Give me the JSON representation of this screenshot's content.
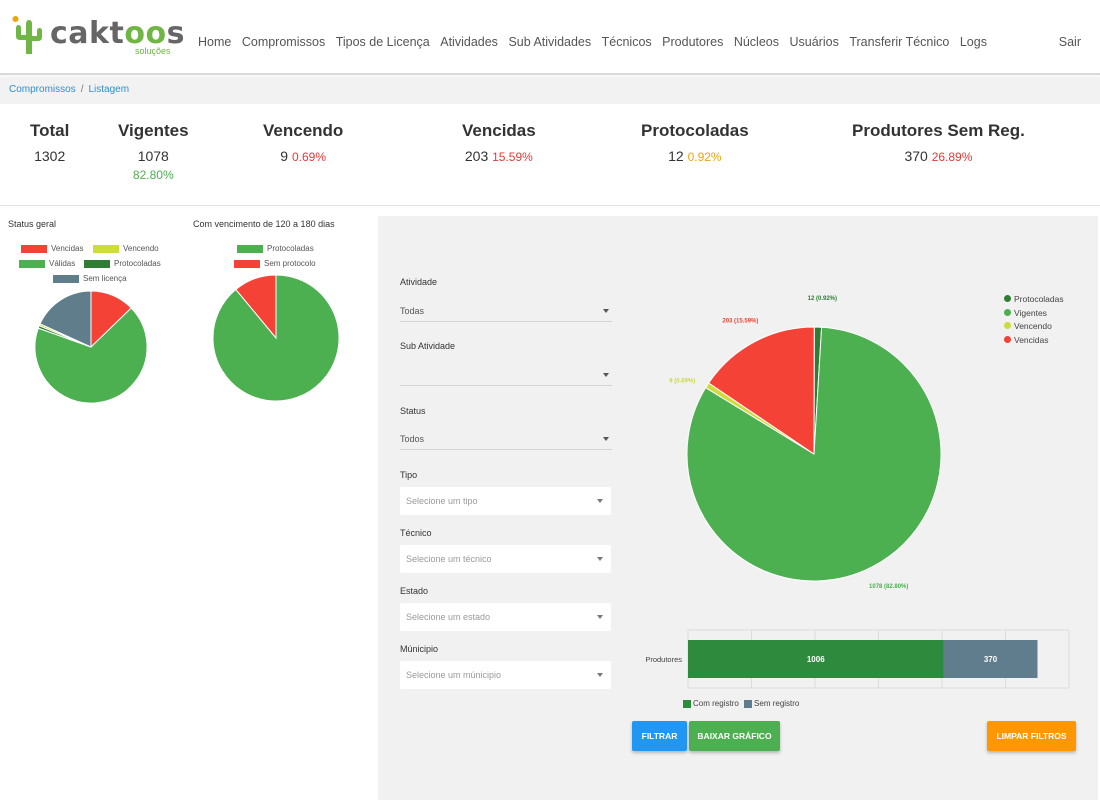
{
  "logo": {
    "brand_a": "cakt",
    "brand_b": "oo",
    "brand_c": "s",
    "tagline": "soluções"
  },
  "nav": {
    "items": [
      "Home",
      "Compromissos",
      "Tipos de Licença",
      "Atividades",
      "Sub Atividades",
      "Técnicos",
      "Produtores",
      "Núcleos",
      "Usuários",
      "Transferir Técnico",
      "Logs"
    ],
    "logout": "Sair"
  },
  "breadcrumb": {
    "root": "Compromissos",
    "separator": "/",
    "current": "Listagem"
  },
  "stats": {
    "total": {
      "title": "Total",
      "value": "1302"
    },
    "vigentes": {
      "title": "Vigentes",
      "value": "1078",
      "pct": "82.80%"
    },
    "vencendo": {
      "title": "Vencendo",
      "value": "9",
      "pct": "0.69%"
    },
    "vencidas": {
      "title": "Vencidas",
      "value": "203",
      "pct": "15.59%"
    },
    "protocoladas": {
      "title": "Protocoladas",
      "value": "12",
      "pct": "0.92%"
    },
    "produtores": {
      "title": "Produtores Sem Reg.",
      "value": "370",
      "pct": "26.89%"
    }
  },
  "chart_data": [
    {
      "type": "pie",
      "title": "Status geral",
      "categories": [
        "Vencidas",
        "Vencendo",
        "Válidas",
        "Protocoladas",
        "Sem licença"
      ],
      "values": [
        203,
        9,
        1078,
        12,
        290
      ],
      "colors": [
        "#f44336",
        "#cddc39",
        "#4caf50",
        "#2e7d32",
        "#607d8b"
      ]
    },
    {
      "type": "pie",
      "title": "Com vencimento de 120 a 180 dias",
      "categories": [
        "Protocoladas",
        "Sem protocolo"
      ],
      "values": [
        89,
        11
      ],
      "colors": [
        "#4caf50",
        "#f44336"
      ]
    },
    {
      "type": "pie",
      "title": "",
      "categories": [
        "Protocoladas",
        "Vigentes",
        "Vencendo",
        "Vencidas"
      ],
      "values": [
        12,
        1078,
        9,
        203
      ],
      "data_labels": [
        "12 (0.92%)",
        "1078 (82.80%)",
        "9 (0.69%)",
        "203 (15.59%)"
      ],
      "colors": [
        "#2e7d32",
        "#4caf50",
        "#cddc39",
        "#f44336"
      ],
      "legend": "top-right"
    },
    {
      "type": "bar",
      "orientation": "horizontal-stacked",
      "categories": [
        "Produtores"
      ],
      "series": [
        {
          "name": "Com registro",
          "values": [
            1006
          ],
          "color": "#2e8b3e"
        },
        {
          "name": "Sem registro",
          "values": [
            370
          ],
          "color": "#5f7d8c"
        }
      ],
      "legend": "bottom"
    }
  ],
  "filters": {
    "atividade": {
      "label": "Atividade",
      "value": "Todas"
    },
    "sub_atividade": {
      "label": "Sub Atividade",
      "value": ""
    },
    "status": {
      "label": "Status",
      "value": "Todos"
    },
    "tipo": {
      "label": "Tipo",
      "placeholder": "Selecione um tipo"
    },
    "tecnico": {
      "label": "Técnico",
      "placeholder": "Selecione um técnico"
    },
    "estado": {
      "label": "Estado",
      "placeholder": "Selecione um estado"
    },
    "municipio": {
      "label": "Múnicipio",
      "placeholder": "Selecione um múnicipio"
    }
  },
  "buttons": {
    "filtrar": {
      "label": "FILTRAR",
      "color": "#2196f3"
    },
    "baixar": {
      "label": "BAIXAR GRÁFICO",
      "color": "#4caf50"
    },
    "limpar": {
      "label": "LIMPAR FILTROS",
      "color": "#ff9800"
    }
  }
}
